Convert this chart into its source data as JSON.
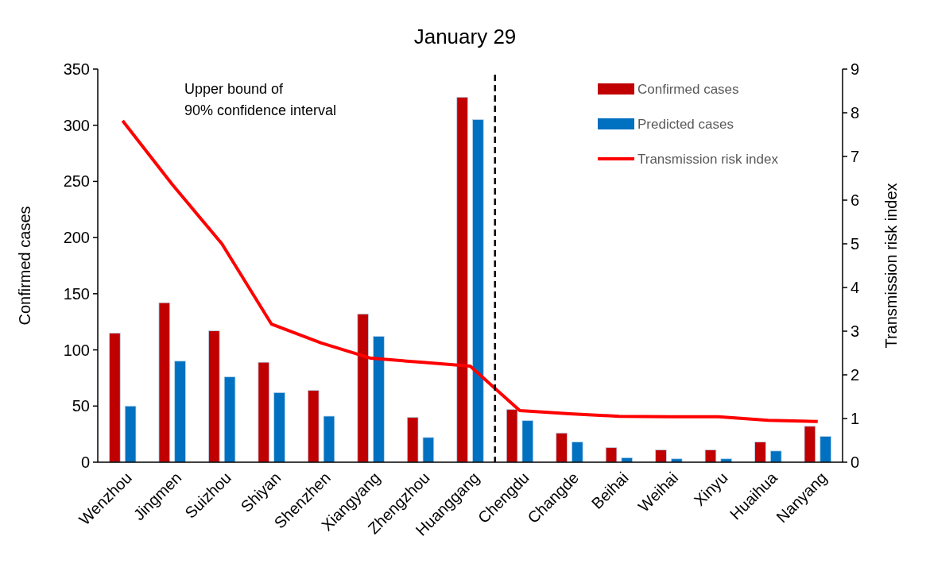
{
  "chart_data": {
    "type": "bar",
    "title": "January 29",
    "ylabel": "Confirmed cases",
    "y2label": "Transmission risk index",
    "categories": [
      "Wenzhou",
      "Jingmen",
      "Suizhou",
      "Shiyan",
      "Shenzhen",
      "Xiangyang",
      "Zhengzhou",
      "Huanggang",
      "Chengdu",
      "Changde",
      "Beihai",
      "Weihai",
      "Xinyu",
      "Huaihua",
      "Nanyang"
    ],
    "series": [
      {
        "name": "Confirmed cases",
        "color": "#c00000",
        "values": [
          115,
          142,
          117,
          89,
          64,
          132,
          40,
          325,
          47,
          26,
          13,
          11,
          11,
          18,
          32
        ]
      },
      {
        "name": "Predicted cases",
        "color": "#0070c0",
        "values": [
          50,
          90,
          76,
          62,
          41,
          112,
          22,
          305,
          37,
          18,
          4,
          3,
          3,
          10,
          23
        ]
      },
      {
        "name": "Transmission risk index",
        "type": "line",
        "axis": "y2",
        "color": "#ff0000",
        "marker": "none",
        "line_style": "solid",
        "values": [
          7.82,
          6.36,
          5.0,
          3.16,
          2.73,
          2.38,
          2.29,
          2.2,
          1.18,
          1.11,
          1.05,
          1.04,
          1.04,
          0.96,
          0.93
        ]
      }
    ],
    "ylim": [
      0,
      350
    ],
    "yticks": [
      0,
      50,
      100,
      150,
      200,
      250,
      300,
      350
    ],
    "y2lim": [
      0,
      9
    ],
    "y2ticks": [
      0,
      1,
      2,
      3,
      4,
      5,
      6,
      7,
      8,
      9
    ],
    "annotations": [
      "Upper bound of\n90% confidence interval"
    ],
    "legend": "top right",
    "grid": false
  }
}
